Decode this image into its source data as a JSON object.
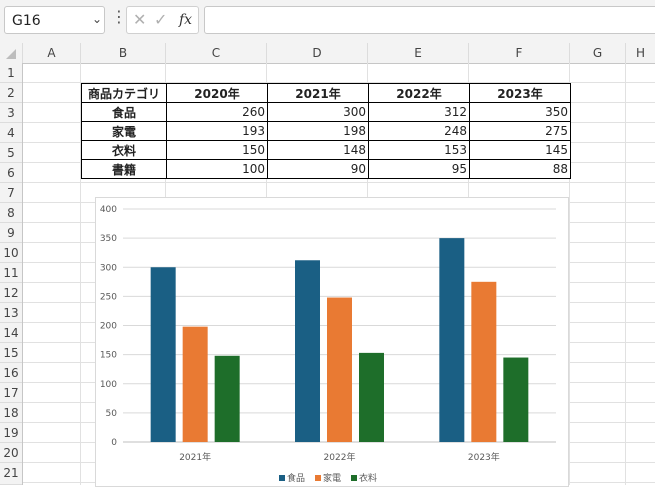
{
  "formula_bar": {
    "name_box": "G16",
    "formula": "",
    "cancel_icon": "close-icon",
    "enter_icon": "check-icon",
    "function_label": "fx"
  },
  "columns": [
    "A",
    "B",
    "C",
    "D",
    "E",
    "F",
    "G",
    "H"
  ],
  "rows": [
    "1",
    "2",
    "3",
    "4",
    "5",
    "6",
    "7",
    "8",
    "9",
    "10",
    "11",
    "12",
    "13",
    "14",
    "15",
    "16",
    "17",
    "18",
    "19",
    "20",
    "21"
  ],
  "table": {
    "header": [
      "商品カテゴリ",
      "2020年",
      "2021年",
      "2022年",
      "2023年"
    ],
    "rows": [
      [
        "食品",
        "260",
        "300",
        "312",
        "350"
      ],
      [
        "家電",
        "193",
        "198",
        "248",
        "275"
      ],
      [
        "衣料",
        "150",
        "148",
        "153",
        "145"
      ],
      [
        "書籍",
        "100",
        "90",
        "95",
        "88"
      ]
    ]
  },
  "chart_data": {
    "type": "bar",
    "categories": [
      "2021年",
      "2022年",
      "2023年"
    ],
    "series": [
      {
        "name": "食品",
        "values": [
          300,
          312,
          350
        ],
        "color": "#1a5f84"
      },
      {
        "name": "家電",
        "values": [
          198,
          248,
          275
        ],
        "color": "#e97a33"
      },
      {
        "name": "衣料",
        "values": [
          148,
          153,
          145
        ],
        "color": "#1e6e2a"
      }
    ],
    "ylim": [
      0,
      400
    ],
    "yticks": [
      "0",
      "50",
      "100",
      "150",
      "200",
      "250",
      "300",
      "350",
      "400"
    ],
    "grid": true,
    "legend": "bottom"
  }
}
